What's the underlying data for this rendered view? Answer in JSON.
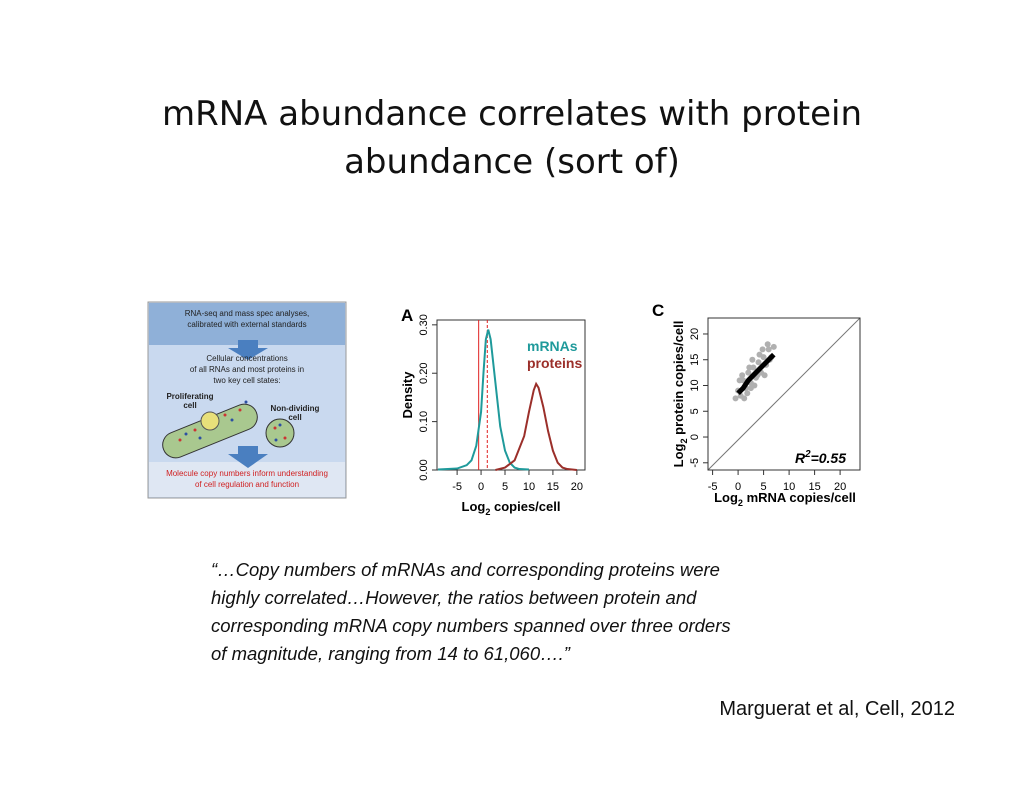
{
  "title": "mRNA abundance correlates with protein abundance (sort of)",
  "figure_1": {
    "header": [
      "RNA-seq and mass spec analyses,",
      "calibrated with external standards"
    ],
    "middle": [
      "Cellular concentrations",
      "of all RNAs and most proteins in",
      "two key cell states:"
    ],
    "cell_1": [
      "Proliferating",
      "cell"
    ],
    "cell_2": [
      "Non-dividing",
      "cell"
    ],
    "footer": [
      "Molecule copy numbers inform understanding",
      "of cell regulation and function"
    ]
  },
  "panel_a": {
    "type": "line",
    "label": "A",
    "x_label": {
      "text": "Log",
      "sub": "2",
      "rest": " copies/cell"
    },
    "y_label": "Density",
    "xlim": [
      -9.2,
      21.7
    ],
    "xticks": [
      -5,
      0,
      5,
      10,
      15,
      20
    ],
    "ylim": [
      0,
      0.31
    ],
    "yticks": [
      {
        "value": 0,
        "label": "0.00"
      },
      {
        "value": 0.1,
        "label": "0.10"
      },
      {
        "value": 0.2,
        "label": "0.20"
      },
      {
        "value": 0.3,
        "label": "0.30"
      }
    ],
    "vlines": [
      -0.5,
      1.3
    ],
    "series": [
      {
        "name": "mRNAs",
        "color": "#1f9a9b",
        "x": [
          -9,
          -5,
          -3,
          -2,
          -1,
          0,
          0.5,
          1,
          1.5,
          2,
          3,
          4,
          5,
          6,
          7,
          8,
          10
        ],
        "values": [
          0.001,
          0.003,
          0.01,
          0.02,
          0.05,
          0.12,
          0.2,
          0.27,
          0.29,
          0.27,
          0.18,
          0.09,
          0.04,
          0.015,
          0.005,
          0.002,
          0.001
        ]
      },
      {
        "name": "proteins",
        "color": "#9b2f2a",
        "x": [
          3,
          5,
          7,
          9,
          10,
          11,
          11.5,
          12,
          13,
          14,
          15,
          16,
          17,
          18,
          20
        ],
        "values": [
          0,
          0.005,
          0.02,
          0.07,
          0.12,
          0.165,
          0.178,
          0.17,
          0.13,
          0.08,
          0.04,
          0.015,
          0.005,
          0.002,
          0
        ]
      }
    ]
  },
  "panel_c": {
    "type": "scatter",
    "label": "C",
    "x_label": {
      "text": "Log",
      "sub": "2",
      "rest": " mRNA copies/cell"
    },
    "y_label": {
      "text": "Log",
      "sub": "2",
      "rest": " protein copies/cell"
    },
    "annotation": {
      "text": "R",
      "sup": "2",
      "rest": "=0.55"
    },
    "xlim": [
      -5.9,
      23.9
    ],
    "xticks": [
      -5,
      0,
      5,
      10,
      15,
      20
    ],
    "ylim": [
      -6.4,
      23.1
    ],
    "yticks": [
      -5,
      0,
      5,
      10,
      15,
      20
    ],
    "points": {
      "color": "#b0b0b0",
      "x": [
        -0.5,
        0,
        0.5,
        1,
        1.5,
        2,
        2.5,
        3,
        3.5,
        4,
        4.5,
        5,
        5.5,
        6,
        6.5,
        7,
        0.3,
        1.2,
        2.2,
        3.2,
        4.2,
        5.2,
        6.2,
        1.8,
        2.8,
        3.8,
        4.8,
        5.8,
        0.8,
        2.5
      ],
      "y": [
        7.5,
        9,
        8,
        11,
        9.5,
        12.5,
        10.5,
        13.5,
        11.5,
        14.5,
        12.5,
        15.5,
        14,
        17,
        15.5,
        17.5,
        11,
        7.5,
        13.5,
        10,
        16,
        12,
        15,
        8.5,
        15,
        12,
        17,
        18,
        12,
        9.5
      ]
    },
    "trend": {
      "color": "#000000",
      "x": [
        0,
        1,
        2,
        3,
        4,
        5,
        6,
        7
      ],
      "y": [
        8.5,
        9.5,
        11,
        12,
        13,
        14,
        15,
        16
      ]
    }
  },
  "quote": [
    "“…Copy numbers of mRNAs and corresponding proteins were",
    "highly correlated…However, the ratios between protein and",
    "corresponding mRNA copy numbers spanned over three orders",
    "of magnitude, ranging from 14 to 61,060….”"
  ],
  "citation": "Marguerat et al, Cell, 2012"
}
